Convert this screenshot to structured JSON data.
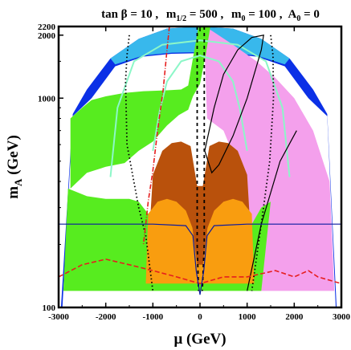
{
  "chart_data": {
    "type": "region-plot",
    "title": "tan β = 10 ,  m1/2 = 500 ,  m0 = 100 , A0 = 0",
    "title_parts": {
      "tanb": "tan β = 10 ,",
      "m12_main": "m",
      "m12_sub": "1/2",
      "m12_val": " = 500 ,",
      "m0_main": "m",
      "m0_sub": "0",
      "m0_val": " = 100 ,",
      "a0_main": "A",
      "a0_sub": "0",
      "a0_val": " = 0"
    },
    "xlabel": "μ (GeV)",
    "ylabel_main": "m",
    "ylabel_sub": "A",
    "ylabel_unit": " (GeV)",
    "xlim": [
      -3000,
      3000
    ],
    "ylim": [
      100,
      2200
    ],
    "yscale": "log",
    "xticks": [
      -3000,
      -2000,
      -1000,
      0,
      1000,
      2000,
      3000
    ],
    "yticks": [
      100,
      1000,
      2000,
      2200
    ],
    "regions": [
      {
        "name": "outer-band",
        "color": "#0b30e6",
        "points": [
          [
            -2700,
            840
          ],
          [
            -2400,
            1100
          ],
          [
            -1900,
            1550
          ],
          [
            -1300,
            1920
          ],
          [
            -700,
            2150
          ],
          [
            0,
            2200
          ],
          [
            700,
            2150
          ],
          [
            1300,
            1920
          ],
          [
            1900,
            1550
          ],
          [
            2400,
            1100
          ],
          [
            2700,
            840
          ],
          [
            2900,
            100
          ],
          [
            2450,
            100
          ],
          [
            2300,
            520
          ],
          [
            1900,
            900
          ],
          [
            1300,
            1280
          ],
          [
            600,
            1440
          ],
          [
            0,
            1470
          ],
          [
            -600,
            1440
          ],
          [
            -1300,
            1280
          ],
          [
            -1900,
            900
          ],
          [
            -2300,
            520
          ],
          [
            -2600,
            100
          ],
          [
            -2950,
            100
          ]
        ]
      },
      {
        "name": "light-blue-band",
        "color": "#38b8ec",
        "points": [
          [
            -1900,
            1550
          ],
          [
            -1300,
            1920
          ],
          [
            -700,
            2150
          ],
          [
            0,
            2200
          ],
          [
            700,
            2150
          ],
          [
            1300,
            1920
          ],
          [
            1900,
            1550
          ],
          [
            1800,
            1450
          ],
          [
            1200,
            1600
          ],
          [
            600,
            1650
          ],
          [
            0,
            1660
          ],
          [
            -600,
            1650
          ],
          [
            -1200,
            1600
          ],
          [
            -1800,
            1450
          ]
        ]
      },
      {
        "name": "white-band-interior",
        "color": "#ffffff",
        "points": [
          [
            -2700,
            820
          ],
          [
            -2300,
            1000
          ],
          [
            -1800,
            1420
          ],
          [
            -1200,
            1580
          ],
          [
            -600,
            1630
          ],
          [
            0,
            1640
          ],
          [
            600,
            1630
          ],
          [
            1200,
            1580
          ],
          [
            1800,
            1420
          ],
          [
            2300,
            1000
          ],
          [
            2700,
            820
          ],
          [
            2880,
            100
          ],
          [
            -2920,
            100
          ]
        ]
      },
      {
        "name": "pink-region",
        "color": "#f4a0ec",
        "points": [
          [
            80,
            2200
          ],
          [
            250,
            2100
          ],
          [
            700,
            1800
          ],
          [
            1200,
            1500
          ],
          [
            1600,
            1250
          ],
          [
            2000,
            1000
          ],
          [
            2400,
            700
          ],
          [
            2750,
            400
          ],
          [
            2850,
            120
          ],
          [
            1100,
            120
          ],
          [
            850,
            450
          ],
          [
            500,
            700
          ],
          [
            150,
            800
          ]
        ]
      },
      {
        "name": "green-region",
        "color": "#57ec1f",
        "points": [
          [
            -2750,
            370
          ],
          [
            -2400,
            440
          ],
          [
            -2000,
            470
          ],
          [
            -1600,
            490
          ],
          [
            -1300,
            560
          ],
          [
            -1000,
            620
          ],
          [
            -700,
            740
          ],
          [
            -450,
            830
          ],
          [
            -250,
            880
          ],
          [
            -150,
            1020
          ],
          [
            0,
            1170
          ],
          [
            120,
            1600
          ],
          [
            220,
            2200
          ],
          [
            -30,
            2200
          ],
          [
            -120,
            1700
          ],
          [
            -250,
            1150
          ],
          [
            -400,
            1100
          ],
          [
            -700,
            1090
          ],
          [
            -1200,
            1080
          ],
          [
            -1600,
            1060
          ],
          [
            -2000,
            1020
          ],
          [
            -2300,
            980
          ],
          [
            -2500,
            900
          ],
          [
            -2750,
            800
          ]
        ]
      },
      {
        "name": "green-low",
        "color": "#57ec1f",
        "points": [
          [
            -2800,
            370
          ],
          [
            -2400,
            340
          ],
          [
            -2000,
            330
          ],
          [
            -1500,
            330
          ],
          [
            -1300,
            320
          ],
          [
            -1100,
            280
          ],
          [
            -800,
            200
          ],
          [
            -400,
            150
          ],
          [
            0,
            140
          ],
          [
            400,
            150
          ],
          [
            800,
            200
          ],
          [
            1100,
            250
          ],
          [
            1300,
            300
          ],
          [
            1500,
            320
          ],
          [
            1300,
            120
          ],
          [
            -2900,
            120
          ]
        ]
      },
      {
        "name": "brown-region",
        "color": "#b9510c",
        "points": [
          [
            -1000,
            430
          ],
          [
            -800,
            560
          ],
          [
            -600,
            610
          ],
          [
            -400,
            620
          ],
          [
            -200,
            590
          ],
          [
            -60,
            380
          ],
          [
            60,
            380
          ],
          [
            200,
            590
          ],
          [
            400,
            620
          ],
          [
            600,
            610
          ],
          [
            800,
            560
          ],
          [
            1000,
            430
          ],
          [
            1050,
            280
          ],
          [
            900,
            200
          ],
          [
            600,
            180
          ],
          [
            300,
            160
          ],
          [
            0,
            150
          ],
          [
            -300,
            160
          ],
          [
            -600,
            180
          ],
          [
            -900,
            200
          ],
          [
            -1050,
            280
          ]
        ]
      },
      {
        "name": "orange-region",
        "color": "#f99d0f",
        "points": [
          [
            -1100,
            280
          ],
          [
            -900,
            320
          ],
          [
            -700,
            330
          ],
          [
            -500,
            320
          ],
          [
            -300,
            290
          ],
          [
            -160,
            240
          ],
          [
            -60,
            160
          ],
          [
            60,
            160
          ],
          [
            160,
            240
          ],
          [
            300,
            290
          ],
          [
            500,
            320
          ],
          [
            700,
            330
          ],
          [
            900,
            320
          ],
          [
            1100,
            280
          ],
          [
            1150,
            130
          ],
          [
            -1150,
            130
          ]
        ]
      }
    ],
    "curves": [
      {
        "name": "aqua-contour",
        "color": "#8cf7c8",
        "width": 2,
        "dash": "",
        "points": [
          [
            -1900,
            420
          ],
          [
            -1750,
            900
          ],
          [
            -1400,
            1500
          ],
          [
            -800,
            1800
          ],
          [
            0,
            1890
          ],
          [
            800,
            1800
          ],
          [
            1400,
            1500
          ],
          [
            1750,
            900
          ],
          [
            1900,
            420
          ]
        ]
      },
      {
        "name": "aqua-contour-inner",
        "color": "#8cf7c8",
        "width": 2,
        "dash": "",
        "points": [
          [
            -1000,
            560
          ],
          [
            -850,
            880
          ],
          [
            -700,
            1200
          ],
          [
            -400,
            1500
          ],
          [
            0,
            1600
          ],
          [
            400,
            1500
          ],
          [
            700,
            1200
          ],
          [
            850,
            880
          ],
          [
            1000,
            560
          ]
        ]
      },
      {
        "name": "black-solid-contour",
        "color": "#000000",
        "width": 1.2,
        "dash": "",
        "points": [
          [
            100,
            560
          ],
          [
            300,
            900
          ],
          [
            500,
            1300
          ],
          [
            800,
            1700
          ],
          [
            1100,
            1950
          ],
          [
            1350,
            2000
          ],
          [
            1300,
            1700
          ],
          [
            1000,
            1000
          ],
          [
            700,
            660
          ],
          [
            400,
            480
          ],
          [
            250,
            440
          ],
          [
            100,
            560
          ]
        ]
      },
      {
        "name": "black-solid-lower",
        "color": "#000000",
        "width": 1.2,
        "dash": "",
        "points": [
          [
            1000,
            120
          ],
          [
            1300,
            250
          ],
          [
            1700,
            500
          ],
          [
            2050,
            700
          ]
        ]
      },
      {
        "name": "dotted-left",
        "color": "#000000",
        "width": 1.8,
        "dash": "1.5,3",
        "points": [
          [
            -1500,
            2000
          ],
          [
            -1550,
            1600
          ],
          [
            -1580,
            1200
          ],
          [
            -1550,
            600
          ],
          [
            -1300,
            300
          ],
          [
            -1150,
            220
          ],
          [
            -1000,
            120
          ]
        ]
      },
      {
        "name": "dotted-right",
        "color": "#000000",
        "width": 1.8,
        "dash": "1.5,3",
        "points": [
          [
            1500,
            2000
          ],
          [
            1550,
            1600
          ],
          [
            1560,
            1000
          ],
          [
            1480,
            500
          ],
          [
            1300,
            250
          ],
          [
            1100,
            120
          ]
        ]
      },
      {
        "name": "dashed-vertical-left",
        "color": "#000000",
        "width": 1.8,
        "dash": "4,4",
        "points": [
          [
            -60,
            2200
          ],
          [
            -60,
            200
          ],
          [
            -30,
            120
          ]
        ]
      },
      {
        "name": "dashed-vertical-right",
        "color": "#000000",
        "width": 1.8,
        "dash": "4,4",
        "points": [
          [
            90,
            2200
          ],
          [
            90,
            200
          ],
          [
            50,
            120
          ]
        ]
      },
      {
        "name": "dash-dot-red",
        "color": "#e61e1e",
        "width": 1.6,
        "dash": "6,2,1,2",
        "points": [
          [
            -650,
            2200
          ],
          [
            -700,
            1700
          ],
          [
            -780,
            1100
          ],
          [
            -900,
            700
          ],
          [
            -1000,
            450
          ],
          [
            -1100,
            320
          ],
          [
            -1150,
            250
          ],
          [
            -1200,
            200
          ]
        ]
      },
      {
        "name": "red-dashed-low",
        "color": "#e61e1e",
        "width": 1.6,
        "dash": "6,3",
        "points": [
          [
            -3000,
            140
          ],
          [
            -2500,
            160
          ],
          [
            -2000,
            170
          ],
          [
            -1500,
            160
          ],
          [
            -1000,
            150
          ],
          [
            -500,
            140
          ],
          [
            0,
            130
          ],
          [
            500,
            140
          ],
          [
            1000,
            140
          ],
          [
            1600,
            150
          ],
          [
            2000,
            140
          ],
          [
            2300,
            150
          ],
          [
            2500,
            140
          ],
          [
            3000,
            130
          ]
        ]
      },
      {
        "name": "blue-line",
        "color": "#0b1aa0",
        "width": 1.2,
        "dash": "",
        "points": [
          [
            -3000,
            250
          ],
          [
            -1000,
            250
          ],
          [
            -300,
            246
          ],
          [
            -150,
            220
          ],
          [
            -80,
            150
          ],
          [
            0,
            115
          ],
          [
            80,
            150
          ],
          [
            150,
            220
          ],
          [
            300,
            246
          ],
          [
            1000,
            250
          ],
          [
            3000,
            250
          ]
        ]
      }
    ]
  }
}
